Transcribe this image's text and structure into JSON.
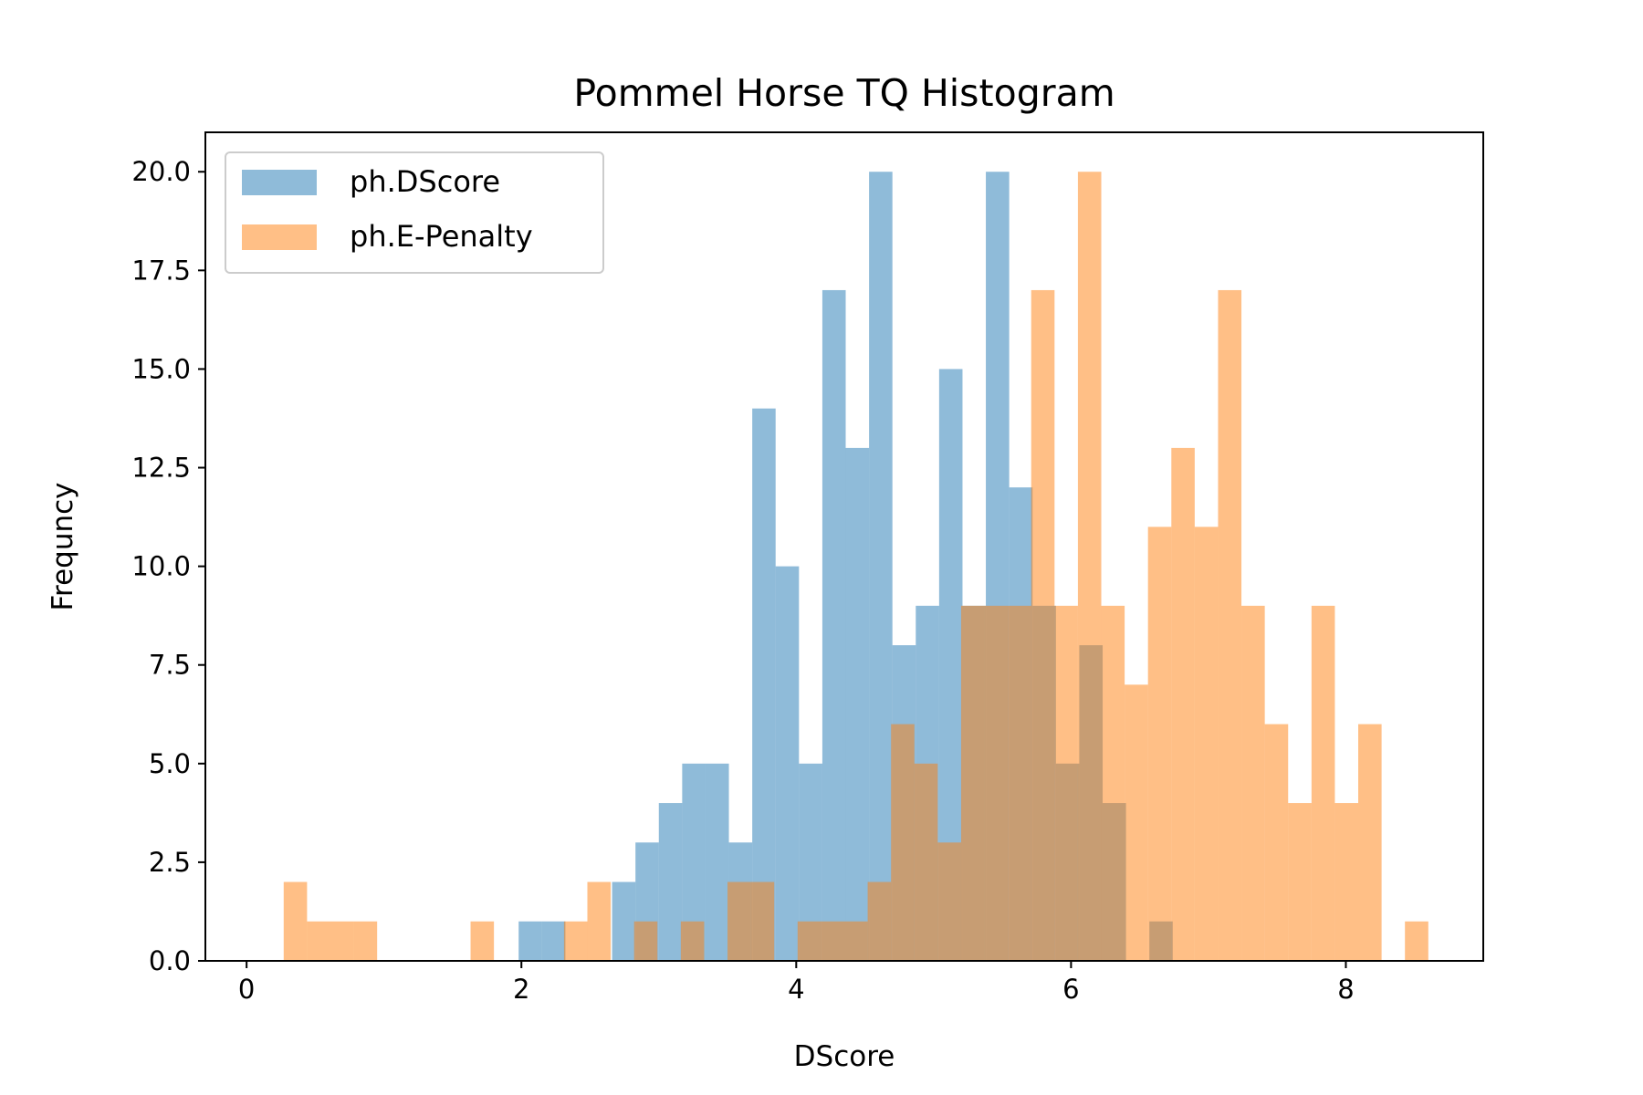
{
  "chart_data": {
    "type": "bar",
    "title": "Pommel Horse TQ Histogram",
    "xlabel": "DScore",
    "ylabel": "Frequncy",
    "xlim": [
      -0.3,
      9.0
    ],
    "ylim": [
      0,
      21
    ],
    "xticks": [
      0,
      2,
      4,
      6,
      8
    ],
    "xtick_labels": [
      "0",
      "2",
      "4",
      "6",
      "8"
    ],
    "yticks": [
      0,
      2.5,
      5,
      7.5,
      10,
      12.5,
      15,
      17.5,
      20
    ],
    "ytick_labels": [
      "0.0",
      "2.5",
      "5.0",
      "7.5",
      "10.0",
      "12.5",
      "15.0",
      "17.5",
      "20.0"
    ],
    "legend_position": "upper-left",
    "grid": false,
    "series": [
      {
        "name": "ph.DScore",
        "color": "#1f77b4",
        "alpha": 0.5,
        "bins": [
          {
            "x0": 1.98,
            "x1": 2.15,
            "count": 1
          },
          {
            "x0": 2.15,
            "x1": 2.32,
            "count": 1
          },
          {
            "x0": 2.66,
            "x1": 2.83,
            "count": 2
          },
          {
            "x0": 2.83,
            "x1": 3.0,
            "count": 3
          },
          {
            "x0": 3.0,
            "x1": 3.17,
            "count": 4
          },
          {
            "x0": 3.17,
            "x1": 3.34,
            "count": 5
          },
          {
            "x0": 3.34,
            "x1": 3.51,
            "count": 5
          },
          {
            "x0": 3.51,
            "x1": 3.68,
            "count": 3
          },
          {
            "x0": 3.68,
            "x1": 3.85,
            "count": 14
          },
          {
            "x0": 3.85,
            "x1": 4.02,
            "count": 10
          },
          {
            "x0": 4.02,
            "x1": 4.19,
            "count": 5
          },
          {
            "x0": 4.19,
            "x1": 4.36,
            "count": 17
          },
          {
            "x0": 4.36,
            "x1": 4.53,
            "count": 13
          },
          {
            "x0": 4.53,
            "x1": 4.7,
            "count": 20
          },
          {
            "x0": 4.7,
            "x1": 4.87,
            "count": 8
          },
          {
            "x0": 4.87,
            "x1": 5.04,
            "count": 9
          },
          {
            "x0": 5.04,
            "x1": 5.21,
            "count": 15
          },
          {
            "x0": 5.21,
            "x1": 5.38,
            "count": 9
          },
          {
            "x0": 5.38,
            "x1": 5.55,
            "count": 20
          },
          {
            "x0": 5.55,
            "x1": 5.72,
            "count": 12
          },
          {
            "x0": 5.72,
            "x1": 5.89,
            "count": 9
          },
          {
            "x0": 5.89,
            "x1": 6.06,
            "count": 5
          },
          {
            "x0": 6.06,
            "x1": 6.23,
            "count": 8
          },
          {
            "x0": 6.23,
            "x1": 6.4,
            "count": 4
          },
          {
            "x0": 6.57,
            "x1": 6.74,
            "count": 1
          }
        ]
      },
      {
        "name": "ph.E-Penalty",
        "color": "#ff7f0e",
        "alpha": 0.5,
        "bins": [
          {
            "x0": 0.27,
            "x1": 0.44,
            "count": 2
          },
          {
            "x0": 0.44,
            "x1": 0.61,
            "count": 1
          },
          {
            "x0": 0.61,
            "x1": 0.78,
            "count": 1
          },
          {
            "x0": 0.78,
            "x1": 0.95,
            "count": 1
          },
          {
            "x0": 1.63,
            "x1": 1.8,
            "count": 1
          },
          {
            "x0": 2.31,
            "x1": 2.48,
            "count": 1
          },
          {
            "x0": 2.48,
            "x1": 2.65,
            "count": 2
          },
          {
            "x0": 2.82,
            "x1": 2.99,
            "count": 1
          },
          {
            "x0": 3.16,
            "x1": 3.33,
            "count": 1
          },
          {
            "x0": 3.5,
            "x1": 3.67,
            "count": 2
          },
          {
            "x0": 3.67,
            "x1": 3.84,
            "count": 2
          },
          {
            "x0": 4.01,
            "x1": 4.18,
            "count": 1
          },
          {
            "x0": 4.18,
            "x1": 4.35,
            "count": 1
          },
          {
            "x0": 4.35,
            "x1": 4.52,
            "count": 1
          },
          {
            "x0": 4.52,
            "x1": 4.69,
            "count": 2
          },
          {
            "x0": 4.69,
            "x1": 4.86,
            "count": 6
          },
          {
            "x0": 4.86,
            "x1": 5.03,
            "count": 5
          },
          {
            "x0": 5.03,
            "x1": 5.2,
            "count": 3
          },
          {
            "x0": 5.2,
            "x1": 5.37,
            "count": 9
          },
          {
            "x0": 5.37,
            "x1": 5.54,
            "count": 9
          },
          {
            "x0": 5.54,
            "x1": 5.71,
            "count": 9
          },
          {
            "x0": 5.71,
            "x1": 5.88,
            "count": 17
          },
          {
            "x0": 5.88,
            "x1": 6.05,
            "count": 9
          },
          {
            "x0": 6.05,
            "x1": 6.22,
            "count": 20
          },
          {
            "x0": 6.22,
            "x1": 6.39,
            "count": 9
          },
          {
            "x0": 6.39,
            "x1": 6.56,
            "count": 7
          },
          {
            "x0": 6.56,
            "x1": 6.73,
            "count": 11
          },
          {
            "x0": 6.73,
            "x1": 6.9,
            "count": 13
          },
          {
            "x0": 6.9,
            "x1": 7.07,
            "count": 11
          },
          {
            "x0": 7.07,
            "x1": 7.24,
            "count": 17
          },
          {
            "x0": 7.24,
            "x1": 7.41,
            "count": 9
          },
          {
            "x0": 7.41,
            "x1": 7.58,
            "count": 6
          },
          {
            "x0": 7.58,
            "x1": 7.75,
            "count": 4
          },
          {
            "x0": 7.75,
            "x1": 7.92,
            "count": 9
          },
          {
            "x0": 7.92,
            "x1": 8.09,
            "count": 4
          },
          {
            "x0": 8.09,
            "x1": 8.26,
            "count": 6
          },
          {
            "x0": 8.43,
            "x1": 8.6,
            "count": 1
          }
        ]
      }
    ]
  }
}
